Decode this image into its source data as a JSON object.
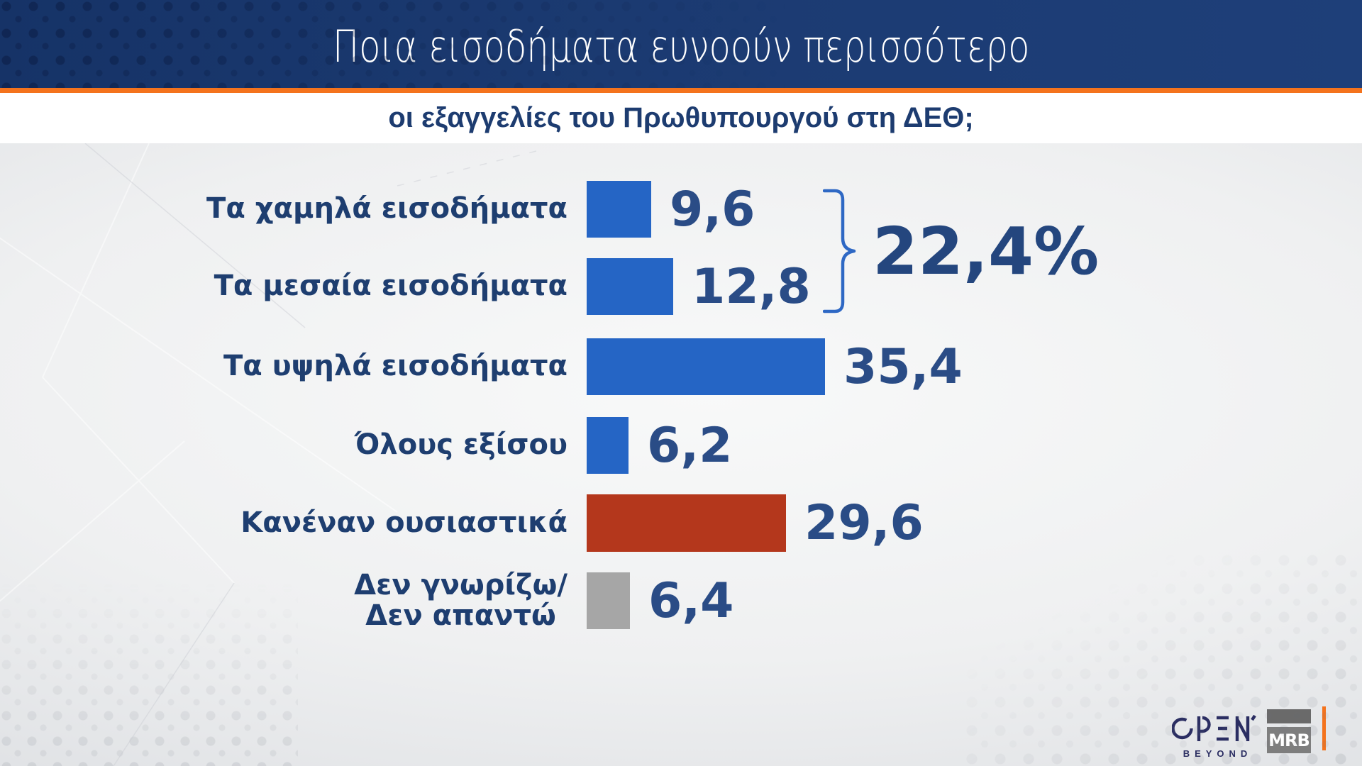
{
  "header": {
    "title": "Ποια εισοδήματα ευνοούν περισσότερο"
  },
  "subtitle": "οι εξαγγελίες του Πρωθυπουργού στη ΔΕΘ;",
  "chart_data": {
    "type": "bar",
    "orientation": "horizontal",
    "title": "Ποια εισοδήματα ευνοούν περισσότερο οι εξαγγελίες του Πρωθυπουργού στη ΔΕΘ;",
    "categories": [
      "Τα χαμηλά εισοδήματα",
      "Τα μεσαία εισοδήματα",
      "Τα υψηλά εισοδήματα",
      "Όλους εξίσου",
      "Κανέναν ουσιαστικά",
      "Δεν γνωρίζω/ Δεν απαντώ"
    ],
    "values": [
      9.6,
      12.8,
      35.4,
      6.2,
      29.6,
      6.4
    ],
    "xlim": [
      0,
      40
    ],
    "grid": false,
    "legend": "none",
    "rows": [
      {
        "label": "Τα χαμηλά εισοδήματα",
        "value": 9.6,
        "display": "9,6",
        "color": "bar_blue"
      },
      {
        "label": "Τα μεσαία εισοδήματα",
        "value": 12.8,
        "display": "12,8",
        "color": "bar_blue"
      },
      {
        "label": "Τα υψηλά εισοδήματα",
        "value": 35.4,
        "display": "35,4",
        "color": "bar_blue"
      },
      {
        "label": "Όλους εξίσου",
        "value": 6.2,
        "display": "6,2",
        "color": "bar_blue"
      },
      {
        "label": "Κανέναν ουσιαστικά",
        "value": 29.6,
        "display": "29,6",
        "color": "bar_red"
      },
      {
        "label": "Δεν γνωρίζω/\nΔεν απαντώ",
        "value": 6.4,
        "display": "6,4",
        "color": "bar_gray"
      }
    ],
    "group_annotation": {
      "label": "22,4%",
      "covers": [
        "Τα χαμηλά εισοδήματα",
        "Τα μεσαία εισοδήματα"
      ],
      "sum_of": [
        9.6,
        12.8
      ]
    }
  },
  "logos": {
    "open": "OPEN",
    "open_tagline": "BEYOND",
    "mrb": "MRB"
  },
  "colors": {
    "header_navy": "#1b3a71",
    "accent_orange": "#f4731d",
    "subtitle_navy": "#1d3c70",
    "label_navy": "#1e3e70",
    "value_navy": "#2a4c86",
    "bar_blue": "#2565c5",
    "bar_red": "#b4371c",
    "bar_gray": "#a6a6a6",
    "brace_blue": "#2e68c4"
  }
}
